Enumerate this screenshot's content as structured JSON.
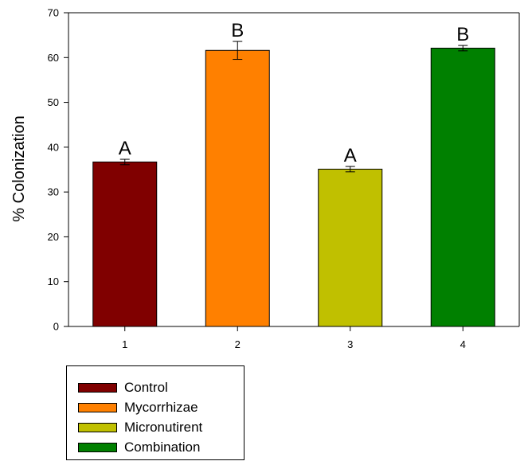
{
  "chart_data": {
    "type": "bar",
    "categories": [
      "1",
      "2",
      "3",
      "4"
    ],
    "values": [
      36.7,
      61.6,
      35.1,
      62.1
    ],
    "errors": [
      0.6,
      2.0,
      0.6,
      0.6
    ],
    "significance": [
      "A",
      "B",
      "A",
      "B"
    ],
    "series_names": [
      "Control",
      "Mycorrhizae",
      "Micronutirent",
      "Combination"
    ],
    "colors": [
      "#800000",
      "#ff8000",
      "#c0c000",
      "#008000"
    ],
    "ylabel": "% Colonization",
    "xlabel": "",
    "ylim": [
      0,
      70
    ],
    "yticks": [
      "0",
      "10",
      "20",
      "30",
      "40",
      "50",
      "60",
      "70"
    ],
    "grid": false,
    "legend_position": "bottom-left"
  }
}
